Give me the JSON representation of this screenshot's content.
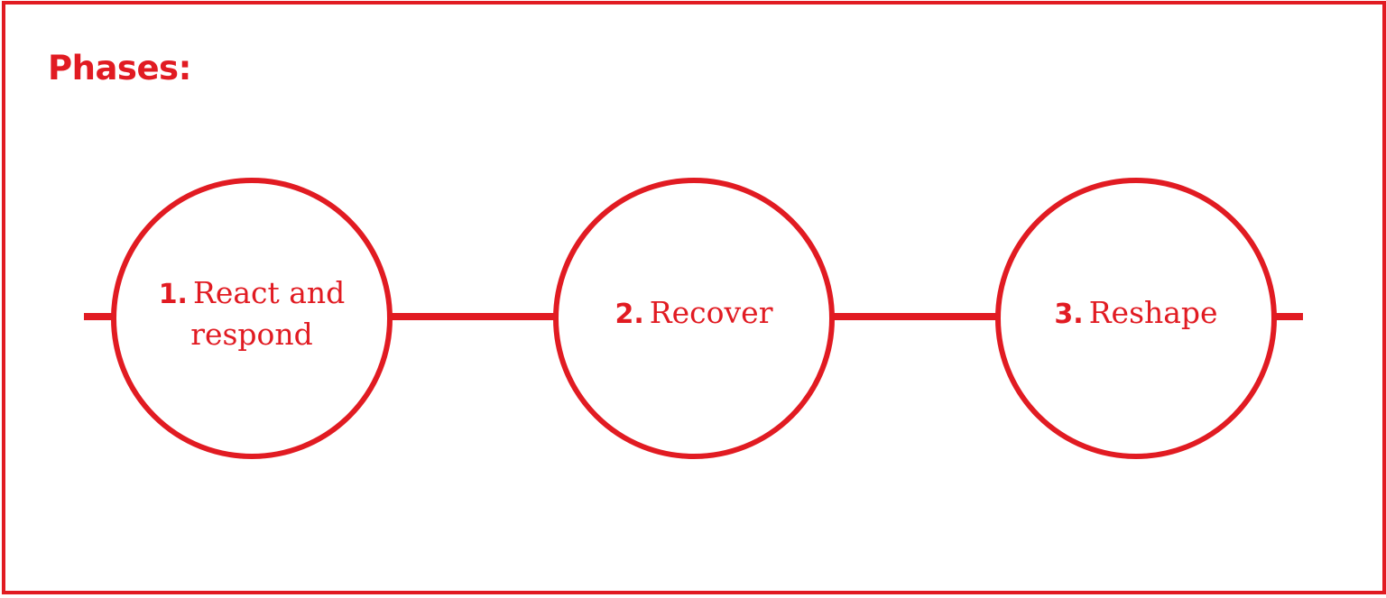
{
  "colors": {
    "accent": "#e11b22",
    "background": "#ffffff"
  },
  "title": "Phases:",
  "phases": [
    {
      "number": "1.",
      "label": "React and respond"
    },
    {
      "number": "2.",
      "label": "Recover"
    },
    {
      "number": "3.",
      "label": "Reshape"
    }
  ]
}
